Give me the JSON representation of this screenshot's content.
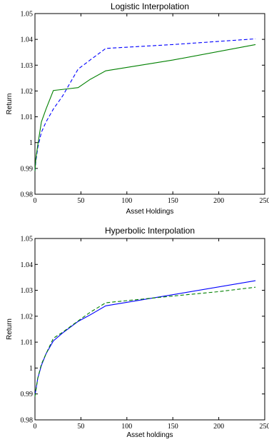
{
  "chart_data": [
    {
      "type": "line",
      "title": "Logistic Interpolation",
      "xlabel": "Asset Holdings",
      "ylabel": "Return",
      "xlim": [
        0,
        250
      ],
      "ylim": [
        0.98,
        1.05
      ],
      "x_ticks": [
        "0",
        "50",
        "100",
        "150",
        "200",
        "250"
      ],
      "y_ticks": [
        "0.98",
        "0.99",
        "1",
        "1.01",
        "1.02",
        "1.03",
        "1.04",
        "1.05"
      ],
      "grid": false,
      "series": [
        {
          "style": "dashed",
          "color": "#0000ff",
          "points": [
            [
              0,
              0.989
            ],
            [
              1,
              0.993
            ],
            [
              3,
              0.998
            ],
            [
              7,
              1.004
            ],
            [
              12,
              1.008
            ],
            [
              20,
              1.013
            ],
            [
              30,
              1.018
            ],
            [
              47,
              1.0285
            ],
            [
              60,
              1.032
            ],
            [
              77,
              1.0365
            ],
            [
              150,
              1.038
            ],
            [
              240,
              1.0402
            ]
          ]
        },
        {
          "style": "solid",
          "color": "#008000",
          "points": [
            [
              0,
              0.989
            ],
            [
              1,
              0.994
            ],
            [
              3,
              0.999
            ],
            [
              7,
              1.008
            ],
            [
              12,
              1.013
            ],
            [
              20,
              1.0202
            ],
            [
              35,
              1.0208
            ],
            [
              47,
              1.0213
            ],
            [
              60,
              1.0245
            ],
            [
              77,
              1.0278
            ],
            [
              150,
              1.032
            ],
            [
              240,
              1.038
            ]
          ]
        }
      ]
    },
    {
      "type": "line",
      "title": "Hyperbolic Interpolation",
      "xlabel": "Asset holdings",
      "ylabel": "Return",
      "xlim": [
        0,
        250
      ],
      "ylim": [
        0.98,
        1.05
      ],
      "x_ticks": [
        "0",
        "50",
        "100",
        "150",
        "200",
        "250"
      ],
      "y_ticks": [
        "0.98",
        "0.99",
        "1",
        "1.01",
        "1.02",
        "1.03",
        "1.04",
        "1.05"
      ],
      "grid": false,
      "series": [
        {
          "style": "solid",
          "color": "#0000ff",
          "points": [
            [
              0,
              0.9895
            ],
            [
              3,
              0.996
            ],
            [
              7,
              1.001
            ],
            [
              12,
              1.0055
            ],
            [
              20,
              1.0105
            ],
            [
              30,
              1.0135
            ],
            [
              47,
              1.018
            ],
            [
              60,
              1.0205
            ],
            [
              77,
              1.024
            ],
            [
              150,
              1.0283
            ],
            [
              240,
              1.0337
            ]
          ]
        },
        {
          "style": "dashed",
          "color": "#008000",
          "points": [
            [
              0,
              0.989
            ],
            [
              3,
              0.996
            ],
            [
              7,
              1.0015
            ],
            [
              12,
              1.0055
            ],
            [
              20,
              1.0115
            ],
            [
              30,
              1.0138
            ],
            [
              47,
              1.0182
            ],
            [
              60,
              1.0215
            ],
            [
              77,
              1.0252
            ],
            [
              150,
              1.0278
            ],
            [
              200,
              1.0295
            ],
            [
              240,
              1.0312
            ]
          ]
        }
      ]
    }
  ]
}
